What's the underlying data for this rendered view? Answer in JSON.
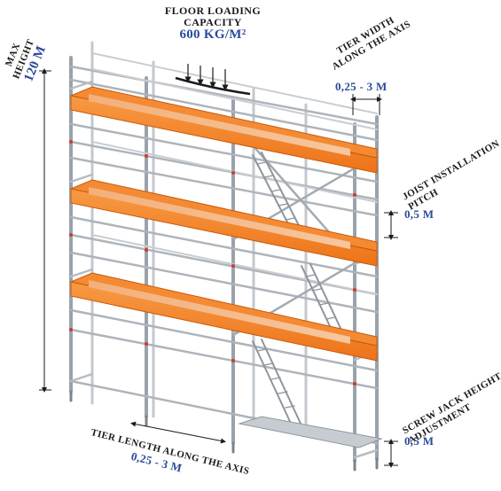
{
  "labels": {
    "floor_loading": {
      "title_line1": "FLOOR LOADING",
      "title_line2": "CAPACITY",
      "value": "600 KG/M²"
    },
    "max_height": {
      "line1": "MAX",
      "line2": "HEIGHT",
      "value": "120 M"
    },
    "tier_width": {
      "line1": "TIER WIDTH",
      "line2": "ALONG THE AXIS",
      "value": "0,25 - 3 M"
    },
    "joist_pitch": {
      "line1": "JOIST INSTALLATION",
      "line2": "PITCH",
      "value": "0,5 M"
    },
    "tier_length": {
      "line1": "TIER LENGTH ALONG THE AXIS",
      "value": "0,25 - 3 M"
    },
    "screw_jack": {
      "line1": "SCREW JACK HEIGHT",
      "line2": "ADJUSTMENT",
      "value": "0,5 M"
    }
  },
  "colors": {
    "plank_orange": "#f07c1e",
    "plank_edge": "#c85a0a",
    "steel": "#a9b0b8",
    "steel_dark": "#6c737b",
    "value_blue": "#2a4a9a",
    "joint_red": "#d23a2a"
  }
}
